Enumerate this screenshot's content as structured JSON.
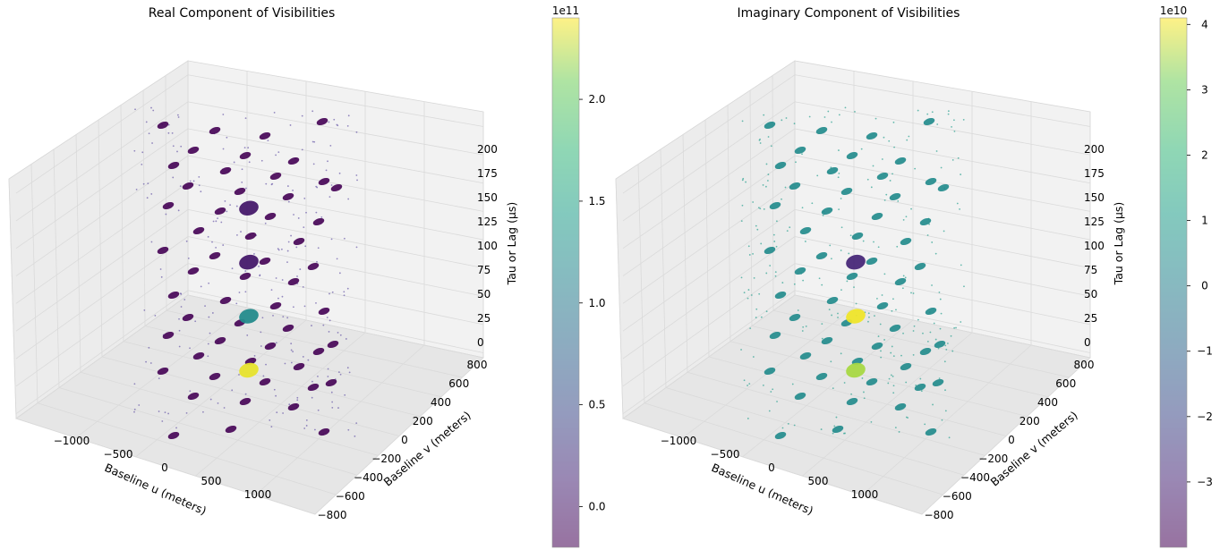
{
  "chart_data": [
    {
      "type": "scatter3d",
      "title": "Real Component of Visibilities",
      "xlabel": "Baseline u (meters)",
      "ylabel": "Baseline v (meters)",
      "zlabel": "Tau or Lag (μs)",
      "xticks": [
        "−1000",
        "−500",
        "0",
        "500",
        "1000"
      ],
      "yticks": [
        "−800",
        "−600",
        "−400",
        "−200",
        "0",
        "200",
        "400",
        "600",
        "800"
      ],
      "zticks": [
        "0",
        "25",
        "50",
        "75",
        "100",
        "125",
        "150",
        "175",
        "200"
      ],
      "xlim": [
        -1300,
        1300
      ],
      "ylim": [
        -800,
        800
      ],
      "zlim": [
        0,
        210
      ],
      "grid": true,
      "colorbar": {
        "multiplier": "1e11",
        "ticks": [
          "0.0",
          "0.5",
          "1.0",
          "1.5",
          "2.0"
        ],
        "tick_values": [
          0.0,
          0.5,
          1.0,
          1.5,
          2.0
        ],
        "range": [
          -0.2,
          2.4
        ],
        "colormap": "viridis"
      },
      "points": [
        {
          "u": 0,
          "v": 0,
          "tau": 0,
          "value": 2.35
        },
        {
          "u": 0,
          "v": 0,
          "tau": 50,
          "value": 1.2
        },
        {
          "u": 0,
          "v": 0,
          "tau": 100,
          "value": 0.0
        },
        {
          "u": 0,
          "v": 0,
          "tau": 150,
          "value": 0.0
        }
      ]
    },
    {
      "type": "scatter3d",
      "title": "Imaginary Component of Visibilities",
      "xlabel": "Baseline u (meters)",
      "ylabel": "Baseline v (meters)",
      "zlabel": "Tau or Lag (μs)",
      "xticks": [
        "−1000",
        "−500",
        "0",
        "500",
        "1000"
      ],
      "yticks": [
        "−800",
        "−600",
        "−400",
        "−200",
        "0",
        "200",
        "400",
        "600",
        "800"
      ],
      "zticks": [
        "0",
        "25",
        "50",
        "75",
        "100",
        "125",
        "150",
        "175",
        "200"
      ],
      "xlim": [
        -1300,
        1300
      ],
      "ylim": [
        -800,
        800
      ],
      "zlim": [
        0,
        210
      ],
      "grid": true,
      "colorbar": {
        "multiplier": "1e10",
        "ticks": [
          "−3",
          "−2",
          "−1",
          "0",
          "1",
          "2",
          "3",
          "4"
        ],
        "tick_values": [
          -3,
          -2,
          -1,
          0,
          1,
          2,
          3,
          4
        ],
        "range": [
          -4.0,
          4.1
        ],
        "colormap": "viridis"
      },
      "points": [
        {
          "u": 0,
          "v": 0,
          "tau": 0,
          "value": 3.5
        },
        {
          "u": 0,
          "v": 0,
          "tau": 50,
          "value": 4.0
        },
        {
          "u": 0,
          "v": 0,
          "tau": 100,
          "value": -3.0
        }
      ]
    }
  ]
}
